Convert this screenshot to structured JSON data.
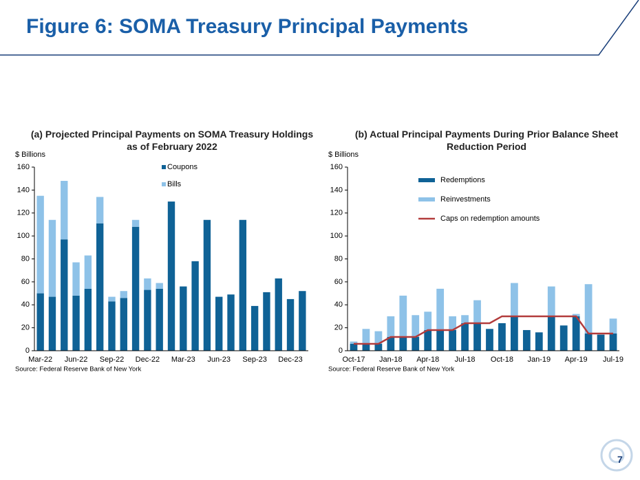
{
  "header": {
    "title": "Figure 6: SOMA Treasury Principal Payments"
  },
  "page_number": "7",
  "chart_data": [
    {
      "type": "bar",
      "stacked": true,
      "title": "(a) Projected Principal Payments on SOMA Treasury Holdings as of February 2022",
      "ylabel": "$ Billions",
      "source": "Source: Federal Reserve Bank of New York",
      "categories": [
        "Mar-22",
        null,
        null,
        "Jun-22",
        null,
        null,
        "Sep-22",
        null,
        null,
        "Dec-22",
        null,
        null,
        "Mar-23",
        null,
        null,
        "Jun-23",
        null,
        null,
        "Sep-23",
        null,
        null,
        "Dec-23",
        null
      ],
      "series": [
        {
          "name": "Coupons",
          "color": "#0f6296",
          "values": [
            50,
            47,
            97,
            48,
            54,
            111,
            43,
            46,
            108,
            53,
            54,
            130,
            56,
            78,
            114,
            47,
            49,
            114,
            39,
            51,
            63,
            45,
            52
          ]
        },
        {
          "name": "Bills",
          "color": "#8ec2e8",
          "values": [
            85,
            67,
            51,
            29,
            29,
            23,
            4,
            6,
            6,
            10,
            5,
            0,
            0,
            0,
            0,
            0,
            0,
            0,
            0,
            0,
            0,
            0,
            0
          ]
        }
      ],
      "ylim": [
        0,
        160
      ],
      "yticks": [
        0,
        20,
        40,
        60,
        80,
        100,
        120,
        140,
        160
      ]
    },
    {
      "type": "bar",
      "stacked": true,
      "title": "(b) Actual Principal Payments During Prior Balance Sheet Reduction Period",
      "ylabel": "$ Billions",
      "source": "Source: Federal Reserve Bank of New York",
      "categories": [
        "Oct-17",
        null,
        null,
        "Jan-18",
        null,
        null,
        "Apr-18",
        null,
        null,
        "Jul-18",
        null,
        null,
        "Oct-18",
        null,
        null,
        "Jan-19",
        null,
        null,
        "Apr-19",
        null,
        null,
        "Jul-19"
      ],
      "series": [
        {
          "name": "Redemptions",
          "color": "#0f6296",
          "values": [
            6,
            6,
            6,
            12,
            12,
            12,
            18,
            18,
            18,
            24,
            24,
            19,
            24,
            30,
            18,
            16,
            30,
            22,
            30,
            15,
            14,
            15
          ]
        },
        {
          "name": "Reinvestments",
          "color": "#8ec2e8",
          "values": [
            2,
            13,
            11,
            18,
            36,
            19,
            16,
            36,
            12,
            7,
            20,
            0,
            0,
            29,
            0,
            0,
            26,
            0,
            2,
            43,
            0,
            13
          ]
        },
        {
          "name": "Caps on redemption amounts",
          "color": "#b23b3b",
          "type": "line",
          "values": [
            6,
            6,
            6,
            12,
            12,
            12,
            18,
            18,
            18,
            24,
            24,
            24,
            30,
            30,
            30,
            30,
            30,
            30,
            30,
            15,
            15,
            15
          ]
        }
      ],
      "ylim": [
        0,
        160
      ],
      "yticks": [
        0,
        20,
        40,
        60,
        80,
        100,
        120,
        140,
        160
      ]
    }
  ]
}
